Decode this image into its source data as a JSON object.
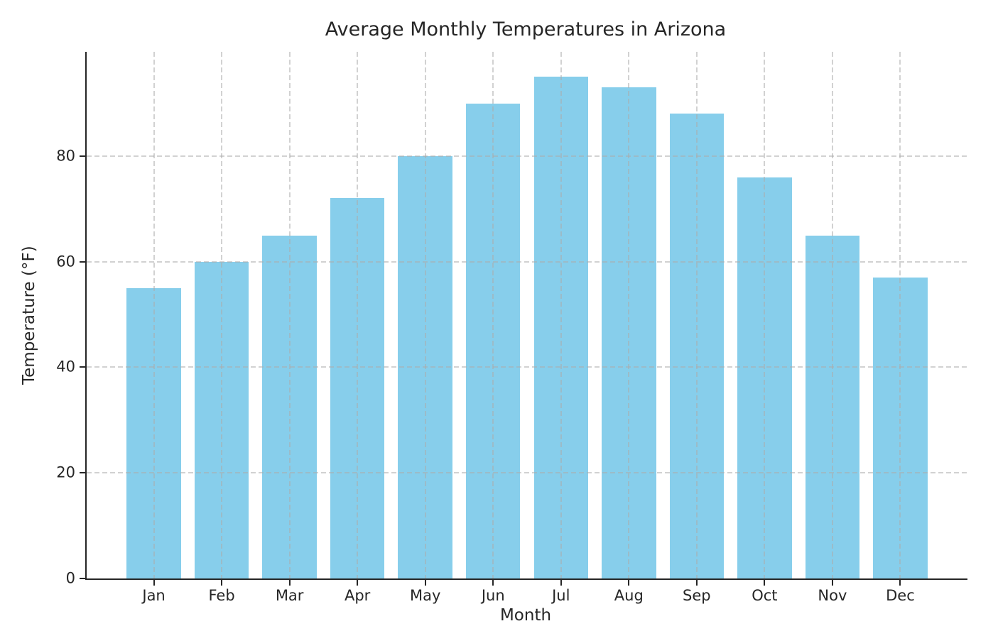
{
  "chart_data": {
    "type": "bar",
    "title": "Average Monthly Temperatures in Arizona",
    "xlabel": "Month",
    "ylabel": "Temperature (°F)",
    "categories": [
      "Jan",
      "Feb",
      "Mar",
      "Apr",
      "May",
      "Jun",
      "Jul",
      "Aug",
      "Sep",
      "Oct",
      "Nov",
      "Dec"
    ],
    "values": [
      55,
      60,
      65,
      72,
      80,
      90,
      95,
      93,
      88,
      76,
      65,
      57
    ],
    "yticks": [
      0,
      20,
      40,
      60,
      80
    ],
    "ylim": [
      0,
      99.75
    ],
    "x_margin_units": 0.99,
    "bar_width_fraction": 0.8,
    "bar_color": "#87CEEB",
    "grid": "dashed, horizontal and vertical, drawn over bars",
    "grid_color": "rgba(172,172,172,0.55)",
    "axis_color": "#262626",
    "text_color": "#262626",
    "background": "#ffffff",
    "legend": "none"
  }
}
